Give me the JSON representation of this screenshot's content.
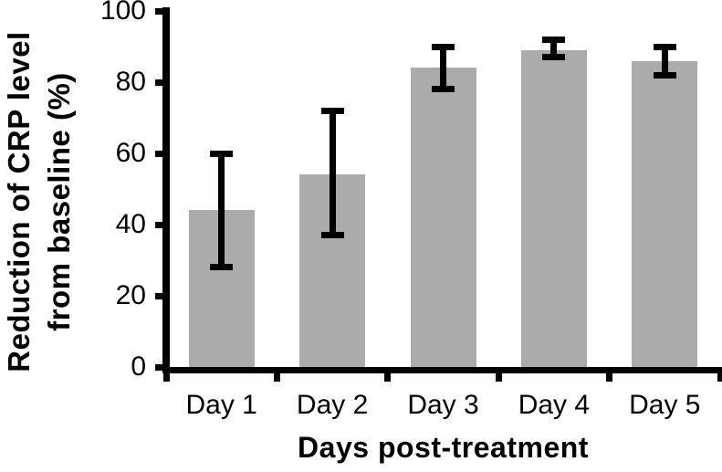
{
  "chart_data": {
    "type": "bar",
    "title": "",
    "categories": [
      "Day 1",
      "Day 2",
      "Day 3",
      "Day 4",
      "Day 5"
    ],
    "values": [
      44,
      54,
      84,
      89,
      86
    ],
    "error_low": [
      28,
      37,
      78,
      87,
      82
    ],
    "error_high": [
      60,
      72,
      90,
      92,
      90
    ],
    "xlabel": "Days post-treatment",
    "ylabel": "Reduction of CRP level from baseline (%)",
    "ylabel_lines": [
      "Reduction of CRP level",
      "from baseline (%)"
    ],
    "ylim": [
      0,
      100
    ],
    "yticks": [
      0,
      20,
      40,
      60,
      80,
      100
    ],
    "grid": false,
    "legend": null,
    "bar_color": "#ABABAB",
    "axis_color": "#000000",
    "background": "#FFFFFF"
  }
}
